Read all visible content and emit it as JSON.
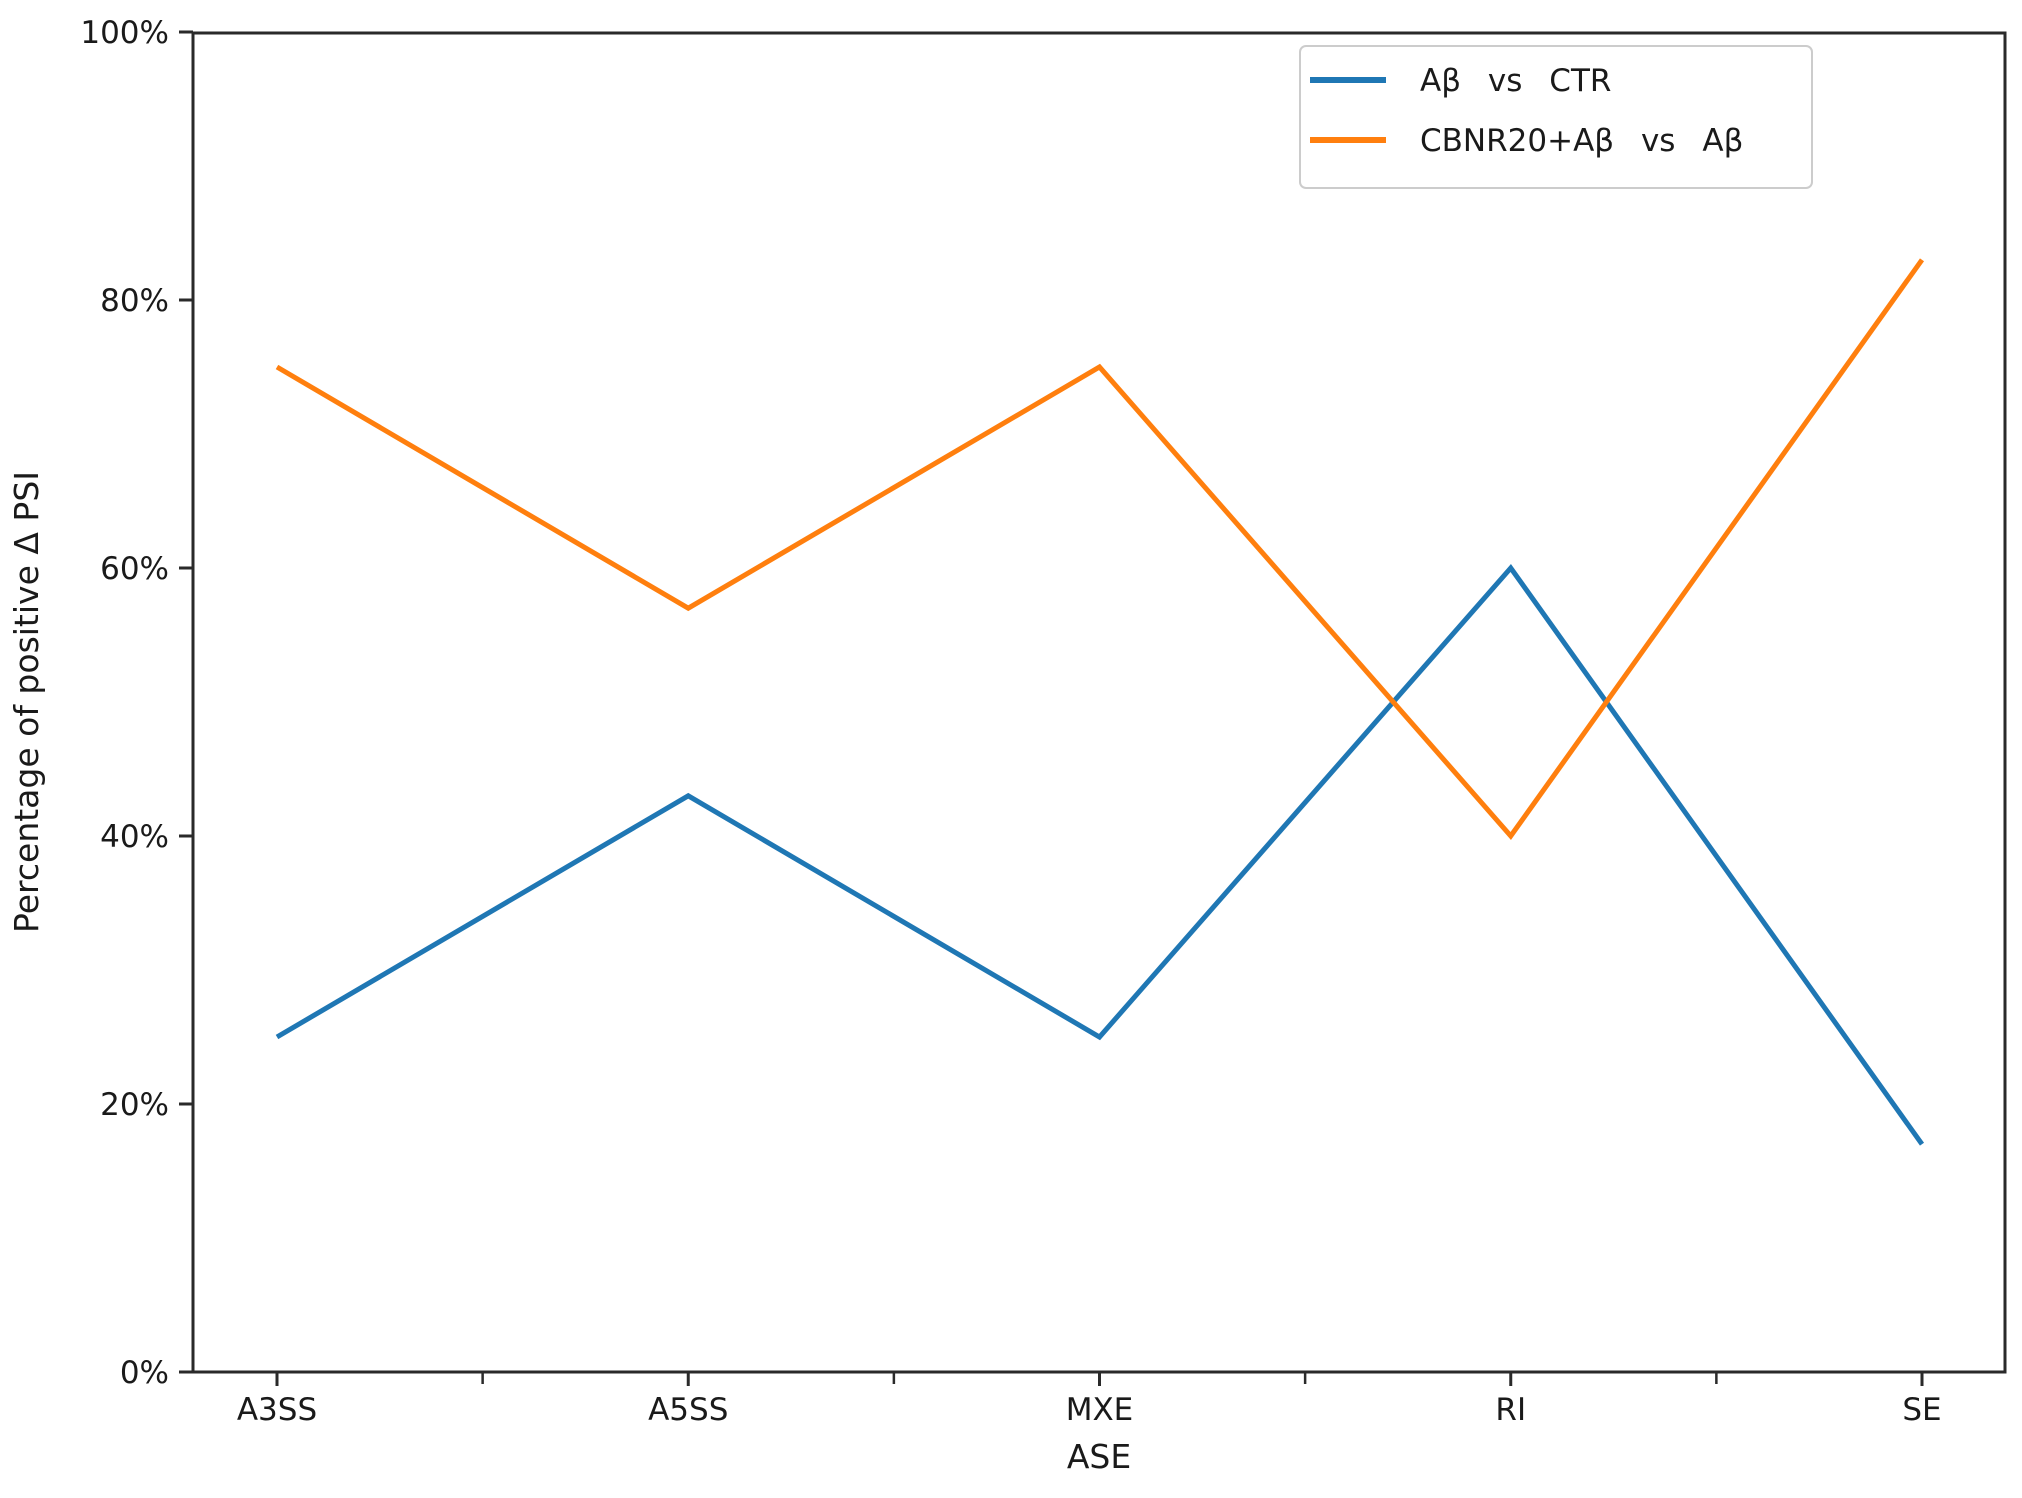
{
  "figure": {
    "xlabel": "ASE",
    "ylabel": "Percentage of positive Δ PSI"
  },
  "chart_data": {
    "type": "line",
    "title": "",
    "xlabel": "ASE",
    "ylabel": "Percentage of positive Δ PSI",
    "categories": [
      "A3SS",
      "A5SS",
      "MXE",
      "RI",
      "SE"
    ],
    "series": [
      {
        "name": "Aβ vs CTR",
        "color": "#1f77b4",
        "values": [
          25,
          43,
          25,
          60,
          17
        ]
      },
      {
        "name": "CBNR20+Aβ vs Aβ",
        "color": "#ff7f0e",
        "values": [
          75,
          57,
          75,
          40,
          83
        ]
      }
    ],
    "y_ticks": [
      {
        "value": 0,
        "label": "0%"
      },
      {
        "value": 20,
        "label": "20%"
      },
      {
        "value": 40,
        "label": "40%"
      },
      {
        "value": 60,
        "label": "60%"
      },
      {
        "value": 80,
        "label": "80%"
      },
      {
        "value": 100,
        "label": "100%"
      }
    ],
    "ylim": [
      0,
      100
    ],
    "grid": false,
    "legend_position": "upper right",
    "minor_x_ticks_between_categories": true,
    "axis_color": "#2a2a2a"
  }
}
